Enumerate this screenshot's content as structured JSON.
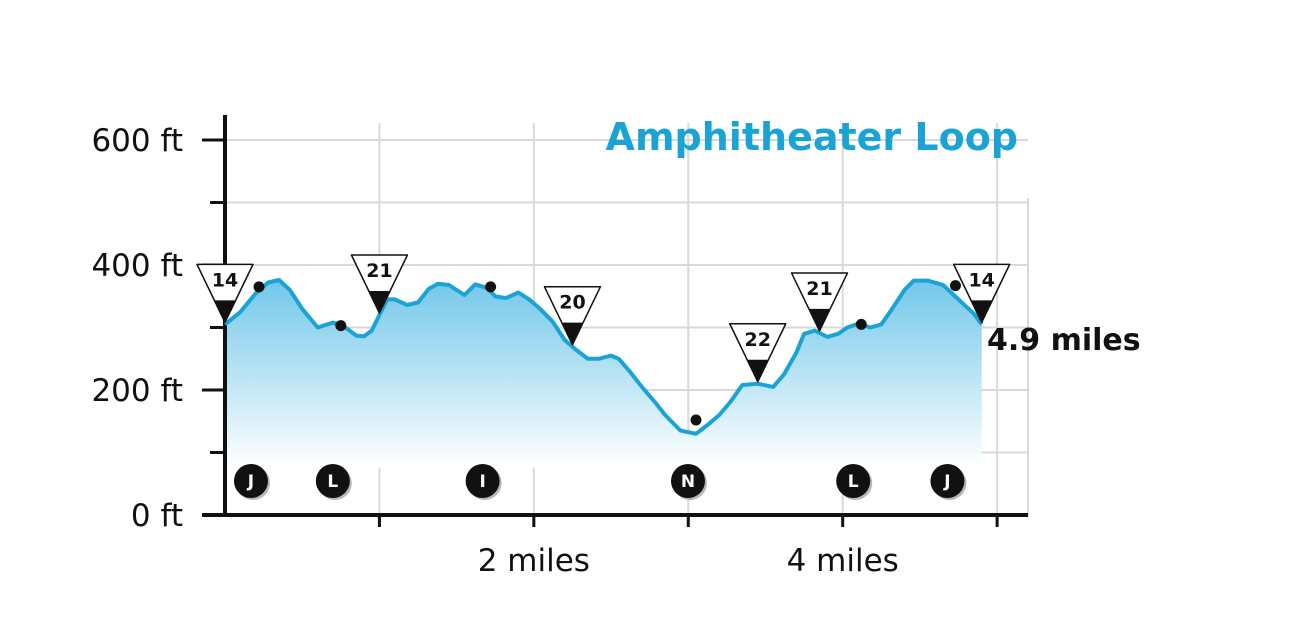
{
  "colors": {
    "profile": "#1aa3d4",
    "fill_top": "#72c7ea",
    "fill_bottom": "#ffffff",
    "grid": "#d9d9d9",
    "axis": "#111111"
  },
  "chart_data": {
    "type": "area",
    "title": "Amphitheater Loop",
    "xlabel": "",
    "ylabel": "",
    "xlim": [
      0,
      5.2
    ],
    "ylim": [
      0,
      600
    ],
    "grid": true,
    "x_unit": "miles",
    "y_unit": "ft",
    "y_ticks": [
      {
        "value": 0,
        "label": "0 ft"
      },
      {
        "value": 200,
        "label": "200 ft"
      },
      {
        "value": 400,
        "label": "400 ft"
      },
      {
        "value": 600,
        "label": "600 ft"
      }
    ],
    "y_minor_ticks": [
      100,
      300,
      500
    ],
    "x_ticks": [
      {
        "value": 1,
        "label": ""
      },
      {
        "value": 2,
        "label": "2 miles"
      },
      {
        "value": 3,
        "label": ""
      },
      {
        "value": 4,
        "label": "4 miles"
      },
      {
        "value": 5,
        "label": ""
      }
    ],
    "end_label": "4.9 miles",
    "series": [
      {
        "x": [
          0,
          0.1,
          0.2,
          0.28,
          0.35,
          0.42,
          0.5,
          0.6,
          0.7,
          0.78,
          0.85,
          0.9,
          0.95,
          1.0,
          1.05,
          1.1,
          1.18,
          1.25,
          1.32,
          1.38,
          1.45,
          1.55,
          1.62,
          1.7,
          1.75,
          1.82,
          1.9,
          1.97,
          2.04,
          2.12,
          2.2,
          2.27,
          2.35,
          2.42,
          2.5,
          2.55,
          2.62,
          2.7,
          2.78,
          2.85,
          2.95,
          3.05,
          3.13,
          3.2,
          3.27,
          3.35,
          3.45,
          3.55,
          3.62,
          3.7,
          3.75,
          3.82,
          3.9,
          3.97,
          4.03,
          4.1,
          4.18,
          4.25,
          4.32,
          4.4,
          4.46,
          4.55,
          4.65,
          4.75,
          4.85,
          4.9
        ],
        "y": [
          305,
          325,
          355,
          372,
          376,
          360,
          330,
          300,
          308,
          300,
          287,
          286,
          295,
          320,
          345,
          345,
          336,
          340,
          362,
          370,
          368,
          352,
          369,
          363,
          350,
          347,
          356,
          345,
          330,
          310,
          280,
          265,
          250,
          250,
          255,
          250,
          230,
          205,
          182,
          160,
          135,
          130,
          145,
          160,
          180,
          208,
          210,
          205,
          225,
          260,
          290,
          295,
          285,
          290,
          300,
          306,
          300,
          305,
          330,
          360,
          375,
          375,
          368,
          345,
          322,
          305
        ]
      }
    ],
    "trail_markers": [
      {
        "label": "14",
        "x": 0.0
      },
      {
        "label": "21",
        "x": 1.0
      },
      {
        "label": "20",
        "x": 2.25
      },
      {
        "label": "22",
        "x": 3.45
      },
      {
        "label": "21",
        "x": 3.85
      },
      {
        "label": "14",
        "x": 4.9
      }
    ],
    "points": [
      {
        "x": 0.22,
        "y": 365
      },
      {
        "x": 0.75,
        "y": 303
      },
      {
        "x": 1.72,
        "y": 365
      },
      {
        "x": 3.05,
        "y": 152
      },
      {
        "x": 4.12,
        "y": 305
      },
      {
        "x": 4.73,
        "y": 367
      }
    ],
    "landmarks": [
      {
        "label": "J",
        "x": 0.22
      },
      {
        "label": "L",
        "x": 0.75
      },
      {
        "label": "I",
        "x": 1.72
      },
      {
        "label": "N",
        "x": 3.05
      },
      {
        "label": "L",
        "x": 4.12
      },
      {
        "label": "J",
        "x": 4.73
      }
    ]
  }
}
